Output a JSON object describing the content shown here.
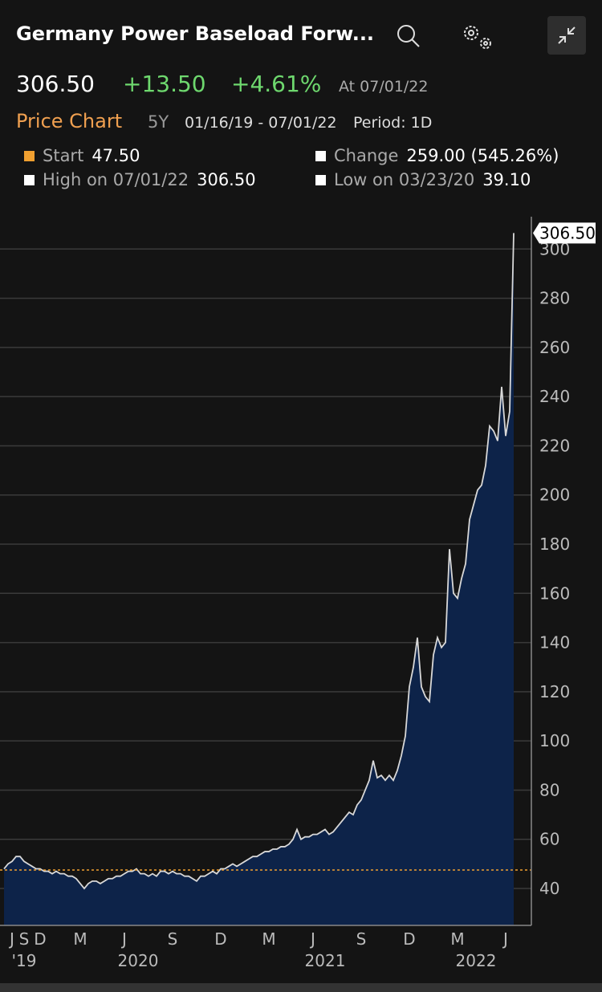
{
  "header": {
    "title": "Germany Power Baseload Forw...",
    "price": "306.50",
    "change": "+13.50",
    "change_pct": "+4.61%",
    "as_of": "At 07/01/22"
  },
  "toolbar": {
    "tab": "Price Chart",
    "range": "5Y",
    "dates": "01/16/19 - 07/01/22",
    "period": "Period: 1D"
  },
  "stats": [
    {
      "label": "Start",
      "value": "47.50"
    },
    {
      "label": "Change",
      "value": "259.00 (545.26%)"
    },
    {
      "label": "High on 07/01/22",
      "value": "306.50"
    },
    {
      "label": "Low on 03/23/20",
      "value": "39.10"
    }
  ],
  "chart_data": {
    "type": "area",
    "color": "#d8d8d8",
    "fill": "#0d2349",
    "categories": [
      null,
      null,
      "J",
      null,
      null,
      "S",
      null,
      null,
      null,
      "D",
      null,
      null,
      null,
      null,
      null,
      null,
      null,
      null,
      null,
      "M",
      null,
      null,
      null,
      null,
      null,
      null,
      null,
      null,
      null,
      null,
      "J",
      null,
      null,
      null,
      null,
      null,
      null,
      null,
      null,
      null,
      null,
      null,
      "S",
      null,
      null,
      null,
      null,
      null,
      null,
      null,
      null,
      null,
      null,
      null,
      "D",
      null,
      null,
      null,
      null,
      null,
      null,
      null,
      null,
      null,
      null,
      null,
      "M",
      null,
      null,
      null,
      null,
      null,
      null,
      null,
      null,
      null,
      null,
      "J",
      null,
      null,
      null,
      null,
      null,
      null,
      null,
      null,
      null,
      null,
      null,
      "S",
      null,
      null,
      null,
      null,
      null,
      null,
      null,
      null,
      null,
      null,
      null,
      "D",
      null,
      null,
      null,
      null,
      null,
      null,
      null,
      null,
      null,
      null,
      null,
      "M",
      null,
      null,
      null,
      null,
      null,
      null,
      null,
      null,
      null,
      null,
      null,
      "J",
      null,
      null
    ],
    "values": [
      48,
      50,
      51,
      53,
      53,
      51,
      50,
      49,
      48,
      48,
      47,
      47,
      46,
      47,
      46,
      46,
      45,
      45,
      44,
      42,
      40,
      42,
      43,
      43,
      42,
      43,
      44,
      44,
      45,
      45,
      46,
      47,
      47,
      48,
      46,
      46,
      45,
      46,
      45,
      47,
      47,
      46,
      47,
      46,
      46,
      45,
      45,
      44,
      43,
      45,
      45,
      46,
      47,
      46,
      48,
      48,
      49,
      50,
      49,
      50,
      51,
      52,
      53,
      53,
      54,
      55,
      55,
      56,
      56,
      57,
      57,
      58,
      60,
      64,
      60,
      61,
      61,
      62,
      62,
      63,
      64,
      62,
      63,
      65,
      67,
      69,
      71,
      70,
      74,
      76,
      80,
      84,
      92,
      85,
      86,
      84,
      86,
      84,
      88,
      94,
      102,
      122,
      130,
      142,
      122,
      118,
      116,
      135,
      142,
      138,
      140,
      178,
      160,
      158,
      166,
      172,
      190,
      196,
      202,
      204,
      212,
      228,
      226,
      222,
      244,
      224,
      234,
      306.5
    ],
    "year_labels": [
      "'19",
      "2020",
      "2021",
      "2022"
    ],
    "reference_line": 47.5,
    "reference_color": "#f0a030",
    "ylim": [
      25,
      320
    ],
    "yticks": [
      40,
      60,
      80,
      100,
      120,
      140,
      160,
      180,
      200,
      220,
      240,
      260,
      280,
      300
    ],
    "grid": true
  }
}
